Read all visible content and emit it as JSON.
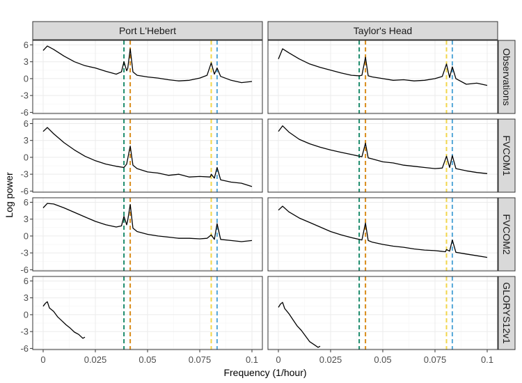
{
  "chart_data": {
    "type": "line",
    "xlabel": "Frequency (1/hour)",
    "ylabel": "Log power",
    "xlim": [
      -0.005,
      0.105
    ],
    "ylim": [
      -6.2,
      6.8
    ],
    "x_ticks": [
      0,
      0.025,
      0.05,
      0.075,
      0.1
    ],
    "x_tick_labels": [
      "0",
      "0.025",
      "0.05",
      "0.075",
      "0.1"
    ],
    "y_ticks": [
      -6,
      -3,
      0,
      3,
      6
    ],
    "y_tick_labels": [
      "-6",
      "-3",
      "0",
      "3",
      "6"
    ],
    "columns": [
      "Port L'Hebert",
      "Taylor's Head"
    ],
    "rows": [
      "Observations",
      "FVCOM1",
      "FVCOM2",
      "GLORYS12v1"
    ],
    "grid": true,
    "vlines": [
      {
        "x": 0.0387,
        "color": "#1b8a6b"
      },
      {
        "x": 0.0417,
        "color": "#d98c1a"
      },
      {
        "x": 0.0805,
        "color": "#f2d64b"
      },
      {
        "x": 0.0833,
        "color": "#55a8d8"
      }
    ],
    "panels": [
      {
        "row": "Observations",
        "col": "Port L'Hebert",
        "x": [
          0,
          0.002,
          0.005,
          0.01,
          0.015,
          0.02,
          0.025,
          0.03,
          0.035,
          0.0375,
          0.0387,
          0.04,
          0.0405,
          0.0417,
          0.043,
          0.045,
          0.05,
          0.055,
          0.06,
          0.065,
          0.07,
          0.075,
          0.0785,
          0.0805,
          0.082,
          0.0833,
          0.085,
          0.09,
          0.095,
          0.1
        ],
        "y": [
          5.0,
          5.8,
          5.2,
          4.0,
          3.0,
          2.3,
          1.9,
          1.3,
          0.8,
          1.2,
          3.0,
          1.4,
          1.8,
          5.3,
          1.2,
          0.6,
          0.3,
          0.1,
          -0.2,
          -0.4,
          -0.3,
          0.1,
          0.6,
          2.8,
          0.8,
          1.9,
          0.4,
          -0.3,
          -0.7,
          -0.5
        ]
      },
      {
        "row": "Observations",
        "col": "Taylor's Head",
        "x": [
          0,
          0.002,
          0.005,
          0.01,
          0.015,
          0.02,
          0.025,
          0.03,
          0.035,
          0.0387,
          0.04,
          0.0417,
          0.043,
          0.045,
          0.05,
          0.055,
          0.06,
          0.065,
          0.07,
          0.075,
          0.0785,
          0.0805,
          0.082,
          0.0833,
          0.085,
          0.09,
          0.095,
          0.1
        ],
        "y": [
          3.5,
          5.3,
          4.6,
          3.5,
          2.6,
          2.0,
          1.5,
          1.0,
          0.6,
          0.5,
          0.6,
          3.8,
          0.5,
          0.3,
          0.0,
          -0.3,
          -0.2,
          -0.4,
          -0.3,
          0.0,
          0.4,
          2.6,
          0.2,
          2.1,
          0.0,
          -1.0,
          -0.8,
          -1.2
        ]
      },
      {
        "row": "FVCOM1",
        "col": "Port L'Hebert",
        "x": [
          0,
          0.002,
          0.005,
          0.01,
          0.015,
          0.02,
          0.025,
          0.03,
          0.035,
          0.0387,
          0.04,
          0.0417,
          0.043,
          0.045,
          0.05,
          0.055,
          0.06,
          0.065,
          0.07,
          0.075,
          0.08,
          0.0805,
          0.082,
          0.0833,
          0.085,
          0.09,
          0.095,
          0.1
        ],
        "y": [
          4.6,
          5.3,
          4.2,
          2.6,
          1.3,
          0.2,
          -0.6,
          -1.2,
          -1.6,
          -1.8,
          -1.2,
          2.0,
          -1.4,
          -2.0,
          -2.6,
          -2.8,
          -3.2,
          -3.0,
          -3.5,
          -3.4,
          -3.5,
          -3.0,
          -3.7,
          -1.8,
          -4.0,
          -4.4,
          -4.6,
          -5.2
        ]
      },
      {
        "row": "FVCOM1",
        "col": "Taylor's Head",
        "x": [
          0,
          0.002,
          0.005,
          0.01,
          0.015,
          0.02,
          0.025,
          0.03,
          0.035,
          0.0387,
          0.04,
          0.0417,
          0.043,
          0.045,
          0.05,
          0.055,
          0.06,
          0.065,
          0.07,
          0.075,
          0.0785,
          0.0805,
          0.082,
          0.0833,
          0.085,
          0.09,
          0.095,
          0.1
        ],
        "y": [
          4.6,
          5.6,
          4.5,
          3.2,
          2.4,
          1.8,
          1.3,
          0.9,
          0.5,
          0.2,
          0.1,
          2.5,
          -0.1,
          -0.3,
          -0.8,
          -1.0,
          -1.4,
          -1.6,
          -1.8,
          -2.0,
          -1.9,
          0.2,
          -1.8,
          0.3,
          -2.0,
          -2.4,
          -2.7,
          -2.9
        ]
      },
      {
        "row": "FVCOM2",
        "col": "Port L'Hebert",
        "x": [
          0,
          0.002,
          0.005,
          0.01,
          0.015,
          0.02,
          0.025,
          0.03,
          0.035,
          0.0375,
          0.0387,
          0.04,
          0.0405,
          0.0417,
          0.043,
          0.045,
          0.05,
          0.055,
          0.06,
          0.065,
          0.07,
          0.075,
          0.0785,
          0.0805,
          0.082,
          0.0833,
          0.085,
          0.09,
          0.095,
          0.1
        ],
        "y": [
          5.0,
          5.8,
          5.7,
          5.0,
          4.2,
          3.4,
          2.6,
          2.0,
          1.6,
          1.8,
          3.5,
          2.0,
          2.8,
          5.6,
          1.4,
          0.8,
          0.3,
          0.0,
          -0.2,
          -0.4,
          -0.4,
          -0.5,
          -0.4,
          0.2,
          -0.6,
          2.2,
          -0.6,
          -0.8,
          -1.0,
          -0.8
        ]
      },
      {
        "row": "FVCOM2",
        "col": "Taylor's Head",
        "x": [
          0,
          0.002,
          0.005,
          0.01,
          0.015,
          0.02,
          0.025,
          0.03,
          0.035,
          0.0387,
          0.04,
          0.0417,
          0.043,
          0.045,
          0.05,
          0.055,
          0.06,
          0.065,
          0.07,
          0.075,
          0.08,
          0.0805,
          0.082,
          0.0833,
          0.085,
          0.09,
          0.095,
          0.1
        ],
        "y": [
          4.6,
          5.3,
          4.3,
          3.2,
          2.4,
          1.6,
          0.8,
          0.2,
          -0.3,
          -0.6,
          -0.7,
          2.3,
          -0.8,
          -1.1,
          -1.5,
          -1.8,
          -2.0,
          -2.3,
          -2.5,
          -2.6,
          -2.8,
          -2.4,
          -2.7,
          -0.7,
          -2.9,
          -3.2,
          -3.5,
          -3.8
        ]
      },
      {
        "row": "GLORYS12v1",
        "col": "Port L'Hebert",
        "x": [
          0,
          0.001,
          0.002,
          0.003,
          0.005,
          0.007,
          0.009,
          0.011,
          0.013,
          0.015,
          0.017,
          0.019,
          0.02
        ],
        "y": [
          1.5,
          2.0,
          2.3,
          1.2,
          0.6,
          -0.4,
          -1.1,
          -1.8,
          -2.4,
          -3.1,
          -3.5,
          -4.2,
          -4.0
        ]
      },
      {
        "row": "GLORYS12v1",
        "col": "Taylor's Head",
        "x": [
          0,
          0.001,
          0.002,
          0.003,
          0.005,
          0.007,
          0.009,
          0.011,
          0.013,
          0.015,
          0.017,
          0.019,
          0.02
        ],
        "y": [
          1.3,
          1.9,
          2.2,
          1.1,
          0.2,
          -0.9,
          -2.0,
          -2.8,
          -3.8,
          -4.8,
          -5.3,
          -5.8,
          -5.6
        ]
      }
    ]
  },
  "style": {
    "strip_fill": "#d9d9d9",
    "strip_border": "#333333",
    "panel_border": "#333333",
    "grid_major": "#ebebeb",
    "grid_minor": "#f5f5f5",
    "line_color": "#000000"
  }
}
